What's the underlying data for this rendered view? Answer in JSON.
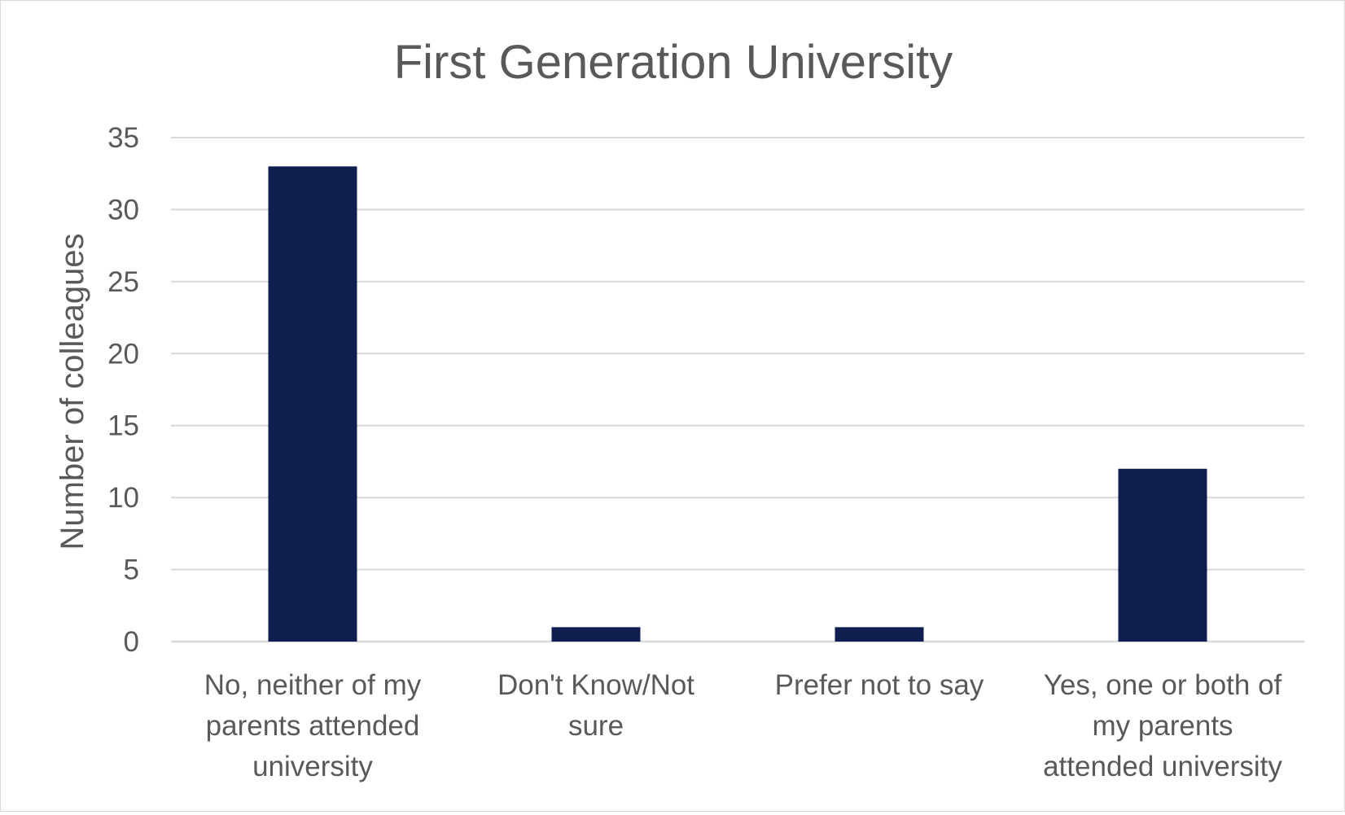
{
  "chart_data": {
    "type": "bar",
    "title": "First Generation University",
    "xlabel": "",
    "ylabel": "Number of colleagues",
    "ylim": [
      0,
      35
    ],
    "ytick_step": 5,
    "yticks": [
      "0",
      "5",
      "10",
      "15",
      "20",
      "25",
      "30",
      "35"
    ],
    "grid": true,
    "legend": "none",
    "categories": [
      [
        "No, neither of my",
        "parents attended",
        "university"
      ],
      [
        "Don't Know/Not",
        "sure"
      ],
      [
        "Prefer not to say"
      ],
      [
        "Yes, one or both of",
        "my parents",
        "attended university"
      ]
    ],
    "values": [
      33,
      1,
      1,
      12
    ],
    "colors": {
      "bar": "#0f1e4e",
      "grid": "#d9d9d9",
      "text": "#595959"
    }
  }
}
